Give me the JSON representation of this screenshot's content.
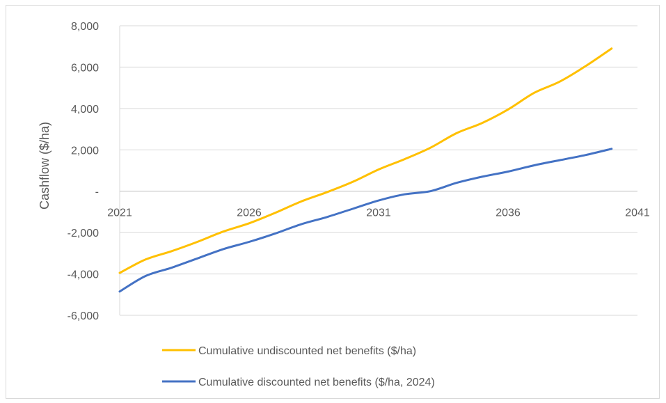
{
  "chart_data": {
    "type": "line",
    "title": "",
    "xlabel": "",
    "ylabel": "Cashflow ($/ha)",
    "xlim": [
      2021,
      2041
    ],
    "ylim": [
      -6000,
      8000
    ],
    "x_ticks": [
      2021,
      2026,
      2031,
      2036,
      2041
    ],
    "x_tick_labels": [
      "2021",
      "2026",
      "2031",
      "2036",
      "2041"
    ],
    "y_ticks": [
      8000,
      6000,
      4000,
      2000,
      0,
      -2000,
      -4000,
      -6000
    ],
    "y_tick_labels": [
      "8,000",
      "6,000",
      "4,000",
      "2,000",
      "-",
      "-2,000",
      "-4,000",
      "-6,000"
    ],
    "grid": true,
    "legend_position": "bottom",
    "x": [
      2021,
      2022,
      2023,
      2024,
      2025,
      2026,
      2027,
      2028,
      2029,
      2030,
      2031,
      2032,
      2033,
      2034,
      2035,
      2036,
      2037,
      2038,
      2039,
      2040
    ],
    "series": [
      {
        "name": "Cumulative undiscounted net benefits ($/ha)",
        "color": "#ffc000",
        "values": [
          -3950,
          -3300,
          -2900,
          -2450,
          -1950,
          -1550,
          -1050,
          -500,
          -50,
          450,
          1050,
          1550,
          2100,
          2800,
          3300,
          3950,
          4750,
          5300,
          6050,
          6900
        ]
      },
      {
        "name": "Cumulative discounted net benefits ($/ha, 2024)",
        "color": "#4472c4",
        "values": [
          -4850,
          -4100,
          -3700,
          -3250,
          -2800,
          -2450,
          -2050,
          -1600,
          -1250,
          -850,
          -450,
          -150,
          0,
          400,
          700,
          950,
          1250,
          1500,
          1750,
          2050
        ]
      }
    ]
  }
}
